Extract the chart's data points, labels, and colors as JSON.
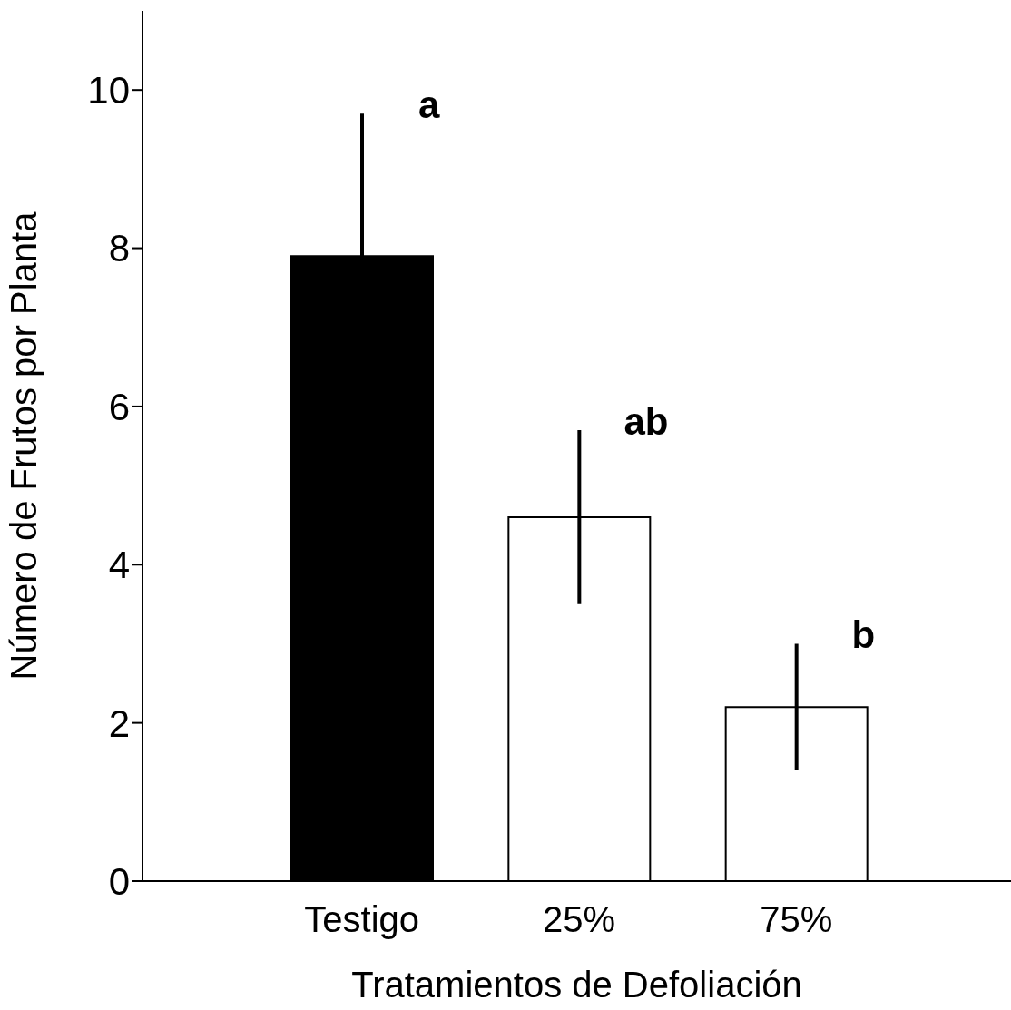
{
  "chart_data": {
    "type": "bar",
    "xlabel": "Tratamientos de Defoliación",
    "ylabel": "Número de Frutos por Planta",
    "categories": [
      "Testigo",
      "25%",
      "75%"
    ],
    "values": [
      7.9,
      4.6,
      2.2
    ],
    "errors": [
      1.8,
      1.1,
      0.8
    ],
    "colors": [
      "#000000",
      "#ffffff",
      "#ffffff"
    ],
    "ylim": [
      0,
      11
    ],
    "yticks": [
      0,
      2,
      4,
      6,
      8,
      10
    ],
    "annotations": [
      "a",
      "ab",
      "b"
    ],
    "grid": false,
    "legend": false
  }
}
